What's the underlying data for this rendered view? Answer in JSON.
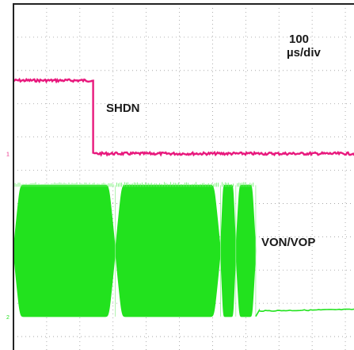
{
  "chart_data": {
    "type": "line",
    "title": "",
    "xlabel": "",
    "ylabel": "",
    "grid": true,
    "time_scale": {
      "value": "100",
      "unit": "µs/div"
    },
    "xlim": [
      0,
      1050
    ],
    "divisions": {
      "x": 10.5,
      "y": 10.5
    },
    "ylim": [
      0,
      10.5
    ],
    "series": [
      {
        "name": "SHDN",
        "color": "#e8197d",
        "marker_text": "1",
        "points": [
          [
            0,
            8.2
          ],
          [
            240,
            8.2
          ],
          [
            240,
            6.0
          ],
          [
            1050,
            6.0
          ]
        ]
      },
      {
        "name": "VON/VOP",
        "color": "#22e21e",
        "marker_text": "2",
        "envelope": {
          "upper": 5.05,
          "lower": 1.1,
          "lobes": [
            [
              0,
              307
            ],
            [
              307,
              624
            ],
            [
              624,
              670
            ],
            [
              670,
              730
            ]
          ]
        },
        "points": [
          [
            730,
            1.1
          ],
          [
            740,
            1.27
          ],
          [
            1050,
            1.32
          ]
        ]
      }
    ]
  },
  "labels": {
    "timebase_value": "100",
    "timebase_unit": "µs/div",
    "shdn": "SHDN",
    "von_vop": "VON/VOP"
  }
}
